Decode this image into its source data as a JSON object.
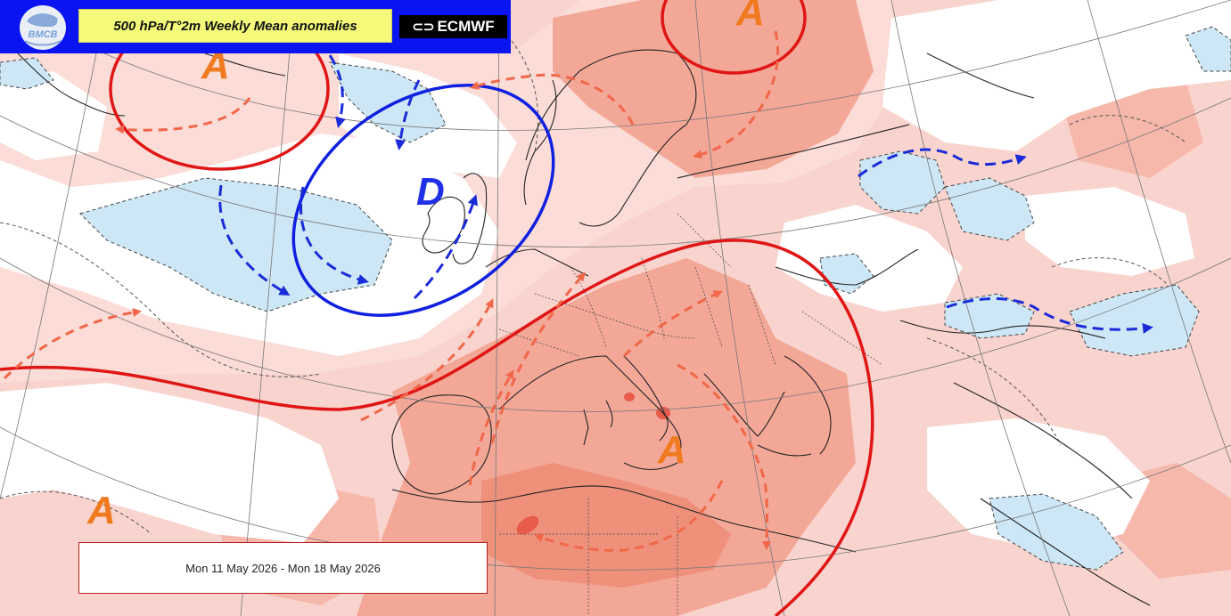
{
  "header": {
    "logo_text": "BMCB",
    "title": "500 hPa/T°2m Weekly Mean anomalies",
    "brand": "ECMWF",
    "brand_icon": "ecmwf-logo-icon"
  },
  "date_range": "Mon 11 May 2026 - Mon 18 May 2026",
  "systems": [
    {
      "label": "A",
      "kind": "anticyclone",
      "where": "Greenland"
    },
    {
      "label": "A",
      "kind": "anticyclone",
      "where": "Barents Sea"
    },
    {
      "label": "D",
      "kind": "depression",
      "where": "British Isles"
    },
    {
      "label": "A",
      "kind": "anticyclone",
      "where": "Central Mediterranean"
    },
    {
      "label": "A",
      "kind": "anticyclone",
      "where": "Subtropical Atlantic"
    }
  ],
  "colors": {
    "header_blue": "#0a14f0",
    "title_yellow": "#f4f97a",
    "warm_anomaly_light": "#f9c9c2",
    "warm_anomaly_strong": "#f19880",
    "warm_anomaly_core": "#e85a4a",
    "cold_anomaly": "#cde7f6",
    "anticyclone_line": "#e01515",
    "depression_line": "#1020e0",
    "warm_flow_arrow": "#f0674a",
    "cold_flow_arrow": "#1a2bd8",
    "label_orange": "#f07a20",
    "label_blue": "#2030e8"
  }
}
